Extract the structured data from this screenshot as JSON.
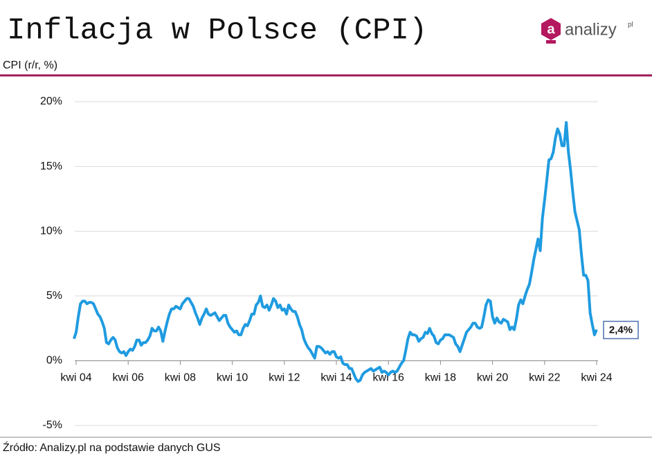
{
  "header": {
    "title": "Inflacja w Polsce (CPI)",
    "logo": {
      "icon_letter": "a",
      "text": "analizy",
      "suffix": "pl"
    }
  },
  "chart_data": {
    "type": "line",
    "y_label": "CPI (r/r, %)",
    "source": "Źródło: Analizy.pl na podstawie danych GUS",
    "color": "#1f9be0",
    "grid": true,
    "ylim": [
      -5,
      20
    ],
    "yticks": [
      {
        "value": -5,
        "label": "-5%"
      },
      {
        "value": 0,
        "label": "0%"
      },
      {
        "value": 5,
        "label": "5%"
      },
      {
        "value": 10,
        "label": "10%"
      },
      {
        "value": 15,
        "label": "15%"
      },
      {
        "value": 20,
        "label": "20%"
      }
    ],
    "end_label": "2,4%",
    "categories": [
      null,
      "kwi 04",
      null,
      null,
      null,
      null,
      null,
      null,
      null,
      null,
      null,
      null,
      null,
      null,
      null,
      null,
      null,
      null,
      null,
      null,
      null,
      null,
      null,
      null,
      null,
      "kwi 06",
      null,
      null,
      null,
      null,
      null,
      null,
      null,
      null,
      null,
      null,
      null,
      null,
      null,
      null,
      null,
      null,
      null,
      null,
      null,
      null,
      null,
      null,
      null,
      "kwi 08",
      null,
      null,
      null,
      null,
      null,
      null,
      null,
      null,
      null,
      null,
      null,
      null,
      null,
      null,
      null,
      null,
      null,
      null,
      null,
      null,
      null,
      null,
      null,
      "kwi 10",
      null,
      null,
      null,
      null,
      null,
      null,
      null,
      null,
      null,
      null,
      null,
      null,
      null,
      null,
      null,
      null,
      null,
      null,
      null,
      null,
      null,
      null,
      null,
      "kwi 12",
      null,
      null,
      null,
      null,
      null,
      null,
      null,
      null,
      null,
      null,
      null,
      null,
      null,
      null,
      null,
      null,
      null,
      null,
      null,
      null,
      null,
      null,
      null,
      "kwi 14",
      null,
      null,
      null,
      null,
      null,
      null,
      null,
      null,
      null,
      null,
      null,
      null,
      null,
      null,
      null,
      null,
      null,
      null,
      null,
      null,
      null,
      null,
      null,
      "kwi 16",
      null,
      null,
      null,
      null,
      null,
      null,
      null,
      null,
      null,
      null,
      null,
      null,
      null,
      null,
      null,
      null,
      null,
      null,
      null,
      null,
      null,
      null,
      null,
      "kwi 18",
      null,
      null,
      null,
      null,
      null,
      null,
      null,
      null,
      null,
      null,
      null,
      null,
      null,
      null,
      null,
      null,
      null,
      null,
      null,
      null,
      null,
      null,
      null,
      "kwi 20",
      null,
      null,
      null,
      null,
      null,
      null,
      null,
      null,
      null,
      null,
      null,
      null,
      null,
      null,
      null,
      null,
      null,
      null,
      null,
      null,
      null,
      null,
      null,
      "kwi 22",
      null,
      null,
      null,
      null,
      null,
      null,
      null,
      null,
      null,
      null,
      null,
      null,
      null,
      null,
      null,
      null,
      null,
      null,
      null,
      null,
      null,
      null,
      null,
      "kwi 24"
    ],
    "values": [
      1.7,
      2.2,
      3.4,
      4.4,
      4.6,
      4.6,
      4.4,
      4.5,
      4.5,
      4.4,
      4.0,
      3.6,
      3.4,
      3.0,
      2.5,
      1.4,
      1.3,
      1.6,
      1.8,
      1.6,
      1.0,
      0.7,
      0.6,
      0.7,
      0.4,
      0.7,
      0.9,
      0.8,
      1.1,
      1.6,
      1.6,
      1.2,
      1.4,
      1.4,
      1.6,
      1.9,
      2.5,
      2.3,
      2.3,
      2.6,
      2.3,
      1.5,
      2.3,
      3.0,
      3.6,
      4.0,
      4.0,
      4.2,
      4.1,
      4.0,
      4.4,
      4.6,
      4.8,
      4.8,
      4.5,
      4.2,
      3.7,
      3.3,
      2.8,
      3.3,
      3.6,
      4.0,
      3.6,
      3.5,
      3.6,
      3.7,
      3.4,
      3.1,
      3.3,
      3.5,
      3.5,
      2.9,
      2.6,
      2.4,
      2.2,
      2.3,
      2.0,
      2.0,
      2.5,
      2.8,
      2.7,
      3.1,
      3.6,
      3.6,
      4.3,
      4.5,
      5.0,
      4.2,
      4.1,
      4.3,
      3.9,
      4.3,
      4.8,
      4.6,
      4.1,
      4.3,
      3.9,
      4.0,
      3.6,
      4.3,
      4.0,
      3.8,
      3.8,
      3.4,
      2.8,
      2.4,
      1.7,
      1.3,
      1.0,
      0.8,
      0.5,
      0.2,
      1.1,
      1.1,
      1.0,
      0.8,
      0.6,
      0.7,
      0.5,
      0.7,
      0.7,
      0.3,
      0.2,
      0.3,
      -0.2,
      -0.3,
      -0.3,
      -0.6,
      -0.6,
      -1.0,
      -1.4,
      -1.6,
      -1.5,
      -1.1,
      -0.9,
      -0.8,
      -0.7,
      -0.6,
      -0.8,
      -0.7,
      -0.6,
      -0.5,
      -0.9,
      -0.8,
      -0.9,
      -1.1,
      -0.9,
      -0.8,
      -0.9,
      -0.8,
      -0.5,
      -0.2,
      0.0,
      0.8,
      1.7,
      2.2,
      2.0,
      2.0,
      1.9,
      1.5,
      1.7,
      1.8,
      2.2,
      2.1,
      2.5,
      2.1,
      1.9,
      1.4,
      1.3,
      1.6,
      1.7,
      2.0,
      2.0,
      2.0,
      1.9,
      1.8,
      1.3,
      1.1,
      0.7,
      1.2,
      1.7,
      2.2,
      2.4,
      2.6,
      2.9,
      2.9,
      2.6,
      2.5,
      2.6,
      3.4,
      4.3,
      4.7,
      4.6,
      3.4,
      2.9,
      3.3,
      3.0,
      2.9,
      3.2,
      3.1,
      3.0,
      2.4,
      2.6,
      2.4,
      3.2,
      4.3,
      4.7,
      4.4,
      5.0,
      5.5,
      5.9,
      6.8,
      7.8,
      8.6,
      9.4,
      8.5,
      11.0,
      12.4,
      13.9,
      15.5,
      15.6,
      16.1,
      17.2,
      17.9,
      17.5,
      16.6,
      16.6,
      18.4,
      16.1,
      14.7,
      13.0,
      11.5,
      10.8,
      10.1,
      8.2,
      6.6,
      6.6,
      6.2,
      3.7,
      2.8,
      2.0,
      2.4
    ]
  }
}
